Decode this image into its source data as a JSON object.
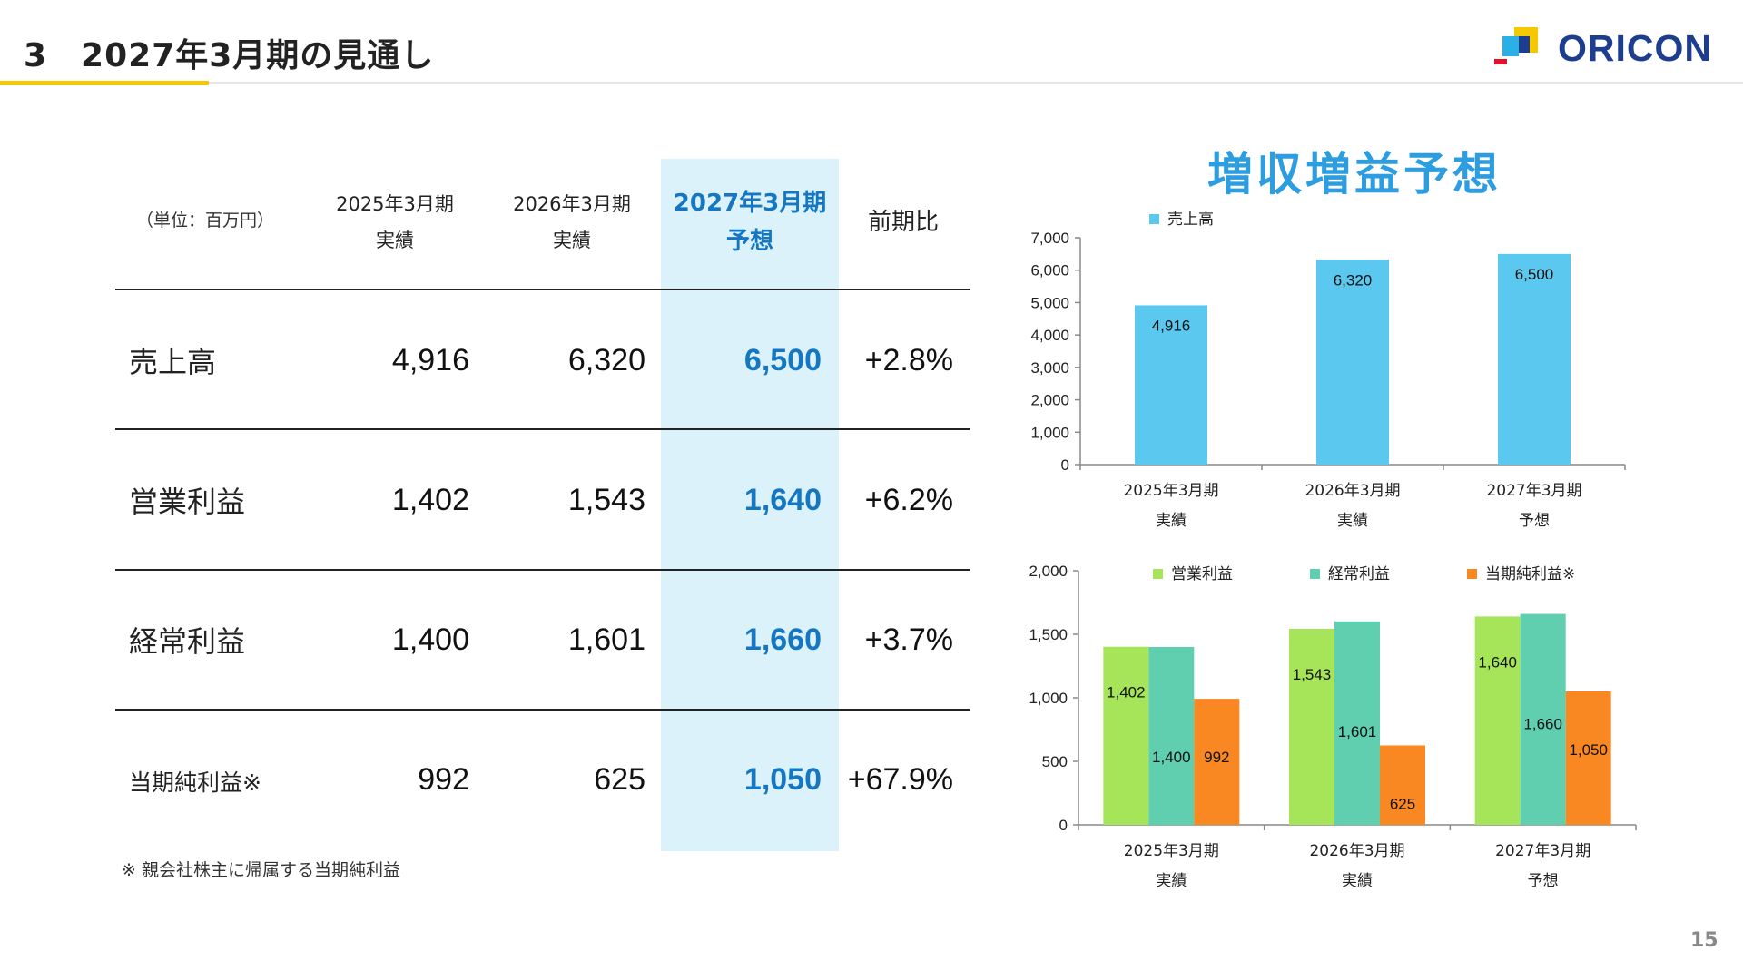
{
  "header": {
    "title": "3　2027年3月期の見通し",
    "logo_text": "ORICON"
  },
  "colors": {
    "highlight_bg": "#dcf2fb",
    "highlight_text": "#1577c2",
    "chart_title": "#2b9de0",
    "sales_bar": "#5bc8f0",
    "op_profit_bar": "#a6e55a",
    "ordinary_bar": "#5fcfb0",
    "net_bar": "#f98722",
    "accent_yellow": "#f5c800"
  },
  "table": {
    "unit": "（単位：百万円）",
    "columns": [
      {
        "line1": "2025年3月期",
        "line2": "実績"
      },
      {
        "line1": "2026年3月期",
        "line2": "実績"
      },
      {
        "line1": "2027年3月期",
        "line2": "予想"
      },
      {
        "line1": "前期比",
        "line2": ""
      }
    ],
    "rows": [
      {
        "label": "売上高",
        "v2025": "4,916",
        "v2026": "6,320",
        "v2027": "6,500",
        "ratio": "+2.8%"
      },
      {
        "label": "営業利益",
        "v2025": "1,402",
        "v2026": "1,543",
        "v2027": "1,640",
        "ratio": "+6.2%"
      },
      {
        "label": "経常利益",
        "v2025": "1,400",
        "v2026": "1,601",
        "v2027": "1,660",
        "ratio": "+3.7%"
      },
      {
        "label": "当期純利益※",
        "v2025": "992",
        "v2026": "625",
        "v2027": "1,050",
        "ratio": "+67.9%"
      }
    ],
    "footnote": "※ 親会社株主に帰属する当期純利益"
  },
  "chart_heading": "増収増益予想",
  "chart_data": [
    {
      "type": "bar",
      "categories": [
        "2025年3月期\n実績",
        "2026年3月期\n実績",
        "2027年3月期\n予想"
      ],
      "series": [
        {
          "name": "売上高",
          "values": [
            4916,
            6320,
            6500
          ],
          "color": "#5bc8f0"
        }
      ],
      "ylim": [
        0,
        7000
      ],
      "yticks": [
        0,
        1000,
        2000,
        3000,
        4000,
        5000,
        6000,
        7000
      ],
      "data_labels": true,
      "legend": "top-left"
    },
    {
      "type": "bar",
      "categories": [
        "2025年3月期\n実績",
        "2026年3月期\n実績",
        "2027年3月期\n予想"
      ],
      "series": [
        {
          "name": "営業利益",
          "values": [
            1402,
            1543,
            1640
          ],
          "color": "#a6e55a"
        },
        {
          "name": "経常利益",
          "values": [
            1400,
            1601,
            1660
          ],
          "color": "#5fcfb0"
        },
        {
          "name": "当期純利益※",
          "values": [
            992,
            625,
            1050
          ],
          "color": "#f98722"
        }
      ],
      "ylim": [
        0,
        2000
      ],
      "yticks": [
        0,
        500,
        1000,
        1500,
        2000
      ],
      "data_labels": true,
      "legend": "top"
    }
  ],
  "page_number": "15"
}
